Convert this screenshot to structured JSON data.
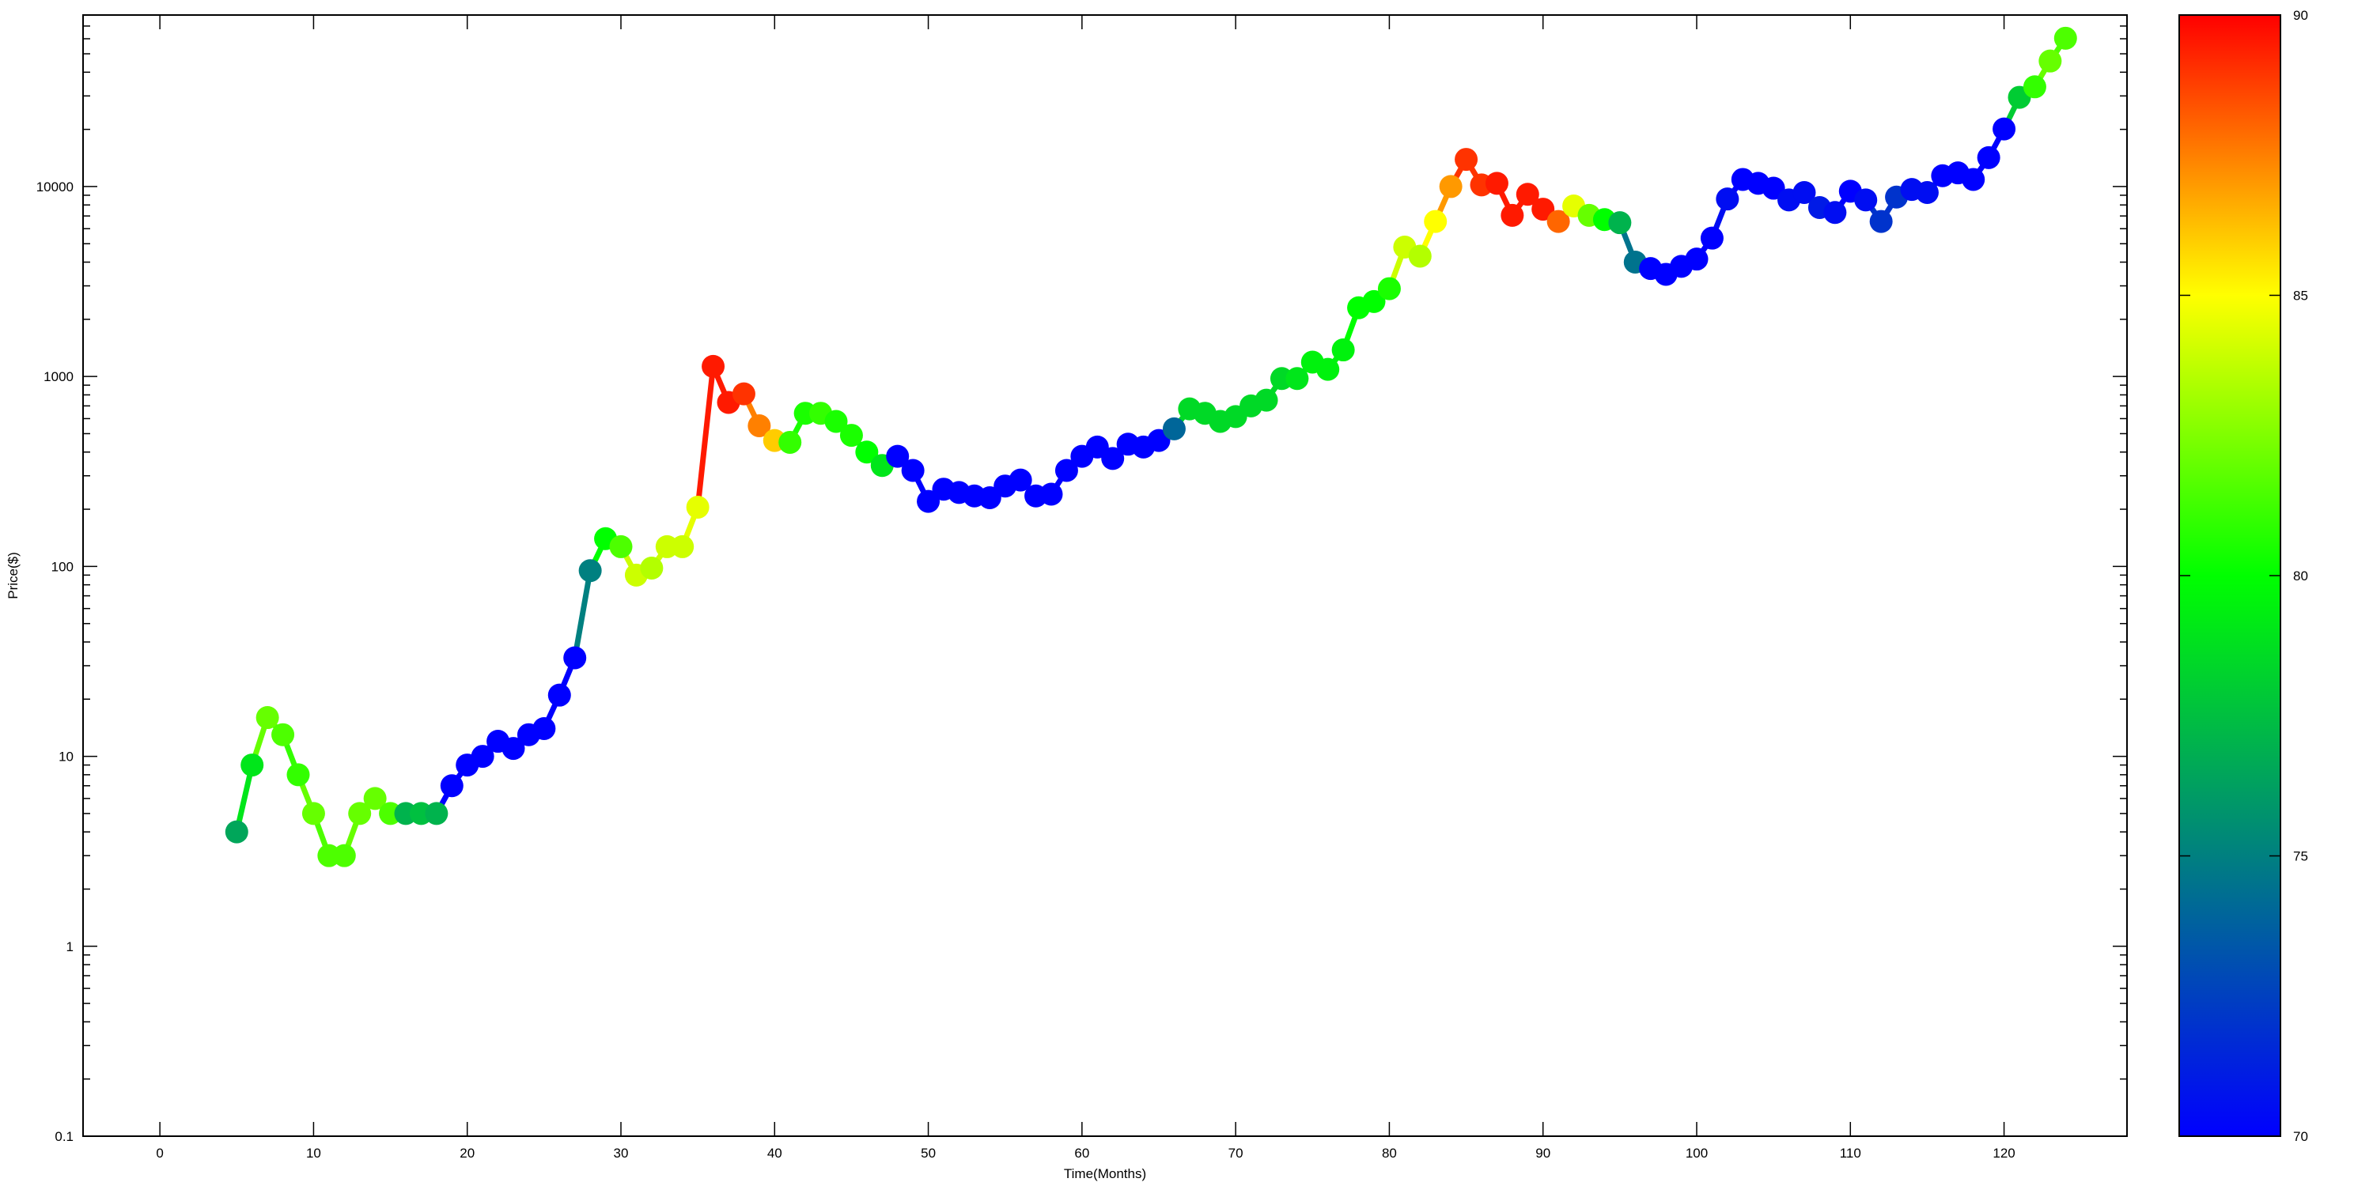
{
  "chart_data": {
    "type": "line",
    "markers": true,
    "title": "",
    "xlabel": "Time(Months)",
    "ylabel": "Price($)",
    "xlim": [
      -5,
      128
    ],
    "ylim": [
      0.1,
      80000
    ],
    "yscale": "log",
    "grid": false,
    "legend": "none",
    "xticks": [
      0,
      10,
      20,
      30,
      40,
      50,
      60,
      70,
      80,
      90,
      100,
      110,
      120
    ],
    "xtick_labels": [
      "0",
      "10",
      "20",
      "30",
      "40",
      "50",
      "60",
      "70",
      "80",
      "90",
      "100",
      "110",
      "120"
    ],
    "yticks": [
      0.1,
      1,
      10,
      100,
      1000,
      10000
    ],
    "ytick_labels": [
      "0.1",
      "1",
      "10",
      "100",
      "1000",
      "10000"
    ],
    "colorbar": {
      "min": 70,
      "max": 90,
      "ticks": [
        70,
        75,
        80,
        85,
        90
      ],
      "tick_labels": [
        "70",
        "75",
        "80",
        "85",
        "90"
      ],
      "palette_stops": [
        {
          "value": 70,
          "color": "#0000ff"
        },
        {
          "value": 75,
          "color": "#008080"
        },
        {
          "value": 80,
          "color": "#00ff00"
        },
        {
          "value": 85,
          "color": "#ffff00"
        },
        {
          "value": 90,
          "color": "#ff0000"
        }
      ]
    },
    "x": [
      5,
      6,
      7,
      8,
      9,
      10,
      11,
      12,
      13,
      14,
      15,
      16,
      17,
      18,
      19,
      20,
      21,
      22,
      23,
      24,
      25,
      26,
      27,
      28,
      29,
      30,
      31,
      32,
      33,
      34,
      35,
      36,
      37,
      38,
      39,
      40,
      41,
      42,
      43,
      44,
      45,
      46,
      47,
      48,
      49,
      50,
      51,
      52,
      53,
      54,
      55,
      56,
      57,
      58,
      59,
      60,
      61,
      62,
      63,
      64,
      65,
      66,
      67,
      68,
      69,
      70,
      71,
      72,
      73,
      74,
      75,
      76,
      77,
      78,
      79,
      80,
      81,
      82,
      83,
      84,
      85,
      86,
      87,
      88,
      89,
      90,
      91,
      92,
      93,
      94,
      95,
      96,
      97,
      98,
      99,
      100,
      101,
      102,
      103,
      104,
      105,
      106,
      107,
      108,
      109,
      110,
      111,
      112,
      113,
      114,
      115,
      116,
      117,
      118,
      119,
      120,
      121,
      122,
      123,
      124
    ],
    "y": [
      4,
      9,
      16,
      13,
      8,
      5,
      3,
      3,
      5,
      6,
      5,
      5,
      5,
      5,
      7,
      9,
      10,
      12,
      11,
      13,
      14,
      21,
      33,
      95,
      140,
      127,
      90,
      98,
      127,
      127,
      205,
      1130,
      730,
      810,
      550,
      460,
      450,
      640,
      640,
      580,
      490,
      400,
      340,
      380,
      320,
      220,
      255,
      245,
      235,
      230,
      265,
      285,
      235,
      240,
      320,
      380,
      425,
      370,
      440,
      425,
      460,
      530,
      675,
      640,
      580,
      615,
      700,
      750,
      975,
      975,
      1190,
      1090,
      1380,
      2300,
      2480,
      2900,
      4800,
      4300,
      6550,
      10000,
      13900,
      10200,
      10400,
      7050,
      9100,
      7600,
      6550,
      7900,
      7050,
      6700,
      6450,
      4000,
      3700,
      3450,
      3800,
      4150,
      5350,
      8600,
      10900,
      10400,
      9800,
      8500,
      9300,
      7750,
      7300,
      9450,
      8500,
      6550,
      8800,
      9650,
      9300,
      11400,
      11800,
      10900,
      14200,
      20100,
      29500,
      33500,
      45800,
      60400
    ],
    "color_values": [
      76.5,
      79,
      82,
      81.5,
      81,
      82,
      81.5,
      81.5,
      82,
      82,
      81.5,
      77,
      77.5,
      77,
      70,
      70,
      70,
      70,
      70,
      70,
      70,
      70,
      70,
      75,
      80,
      81.5,
      84,
      83.5,
      84,
      84,
      84.5,
      89.5,
      89.5,
      89,
      87.5,
      86,
      81,
      80.5,
      81,
      80.5,
      80.5,
      80,
      79,
      70,
      70,
      70,
      70,
      70,
      70,
      70,
      70,
      70,
      70,
      70,
      70,
      70,
      70,
      70,
      70,
      70,
      70,
      74,
      78.5,
      78.5,
      78.5,
      78.5,
      78.5,
      78.5,
      78.5,
      79,
      79.5,
      79.5,
      79.5,
      80,
      80,
      80.5,
      84,
      83.5,
      85,
      87,
      89,
      89,
      89.5,
      89.5,
      89.5,
      89.5,
      88,
      84.5,
      82,
      80,
      77,
      74.5,
      70,
      70,
      70,
      70,
      70,
      70.5,
      70,
      70,
      70,
      70.5,
      70.5,
      71,
      70.5,
      70,
      70.5,
      72,
      72,
      70.5,
      70.5,
      70,
      70,
      70,
      70,
      70,
      78,
      81,
      82,
      81.5
    ]
  }
}
